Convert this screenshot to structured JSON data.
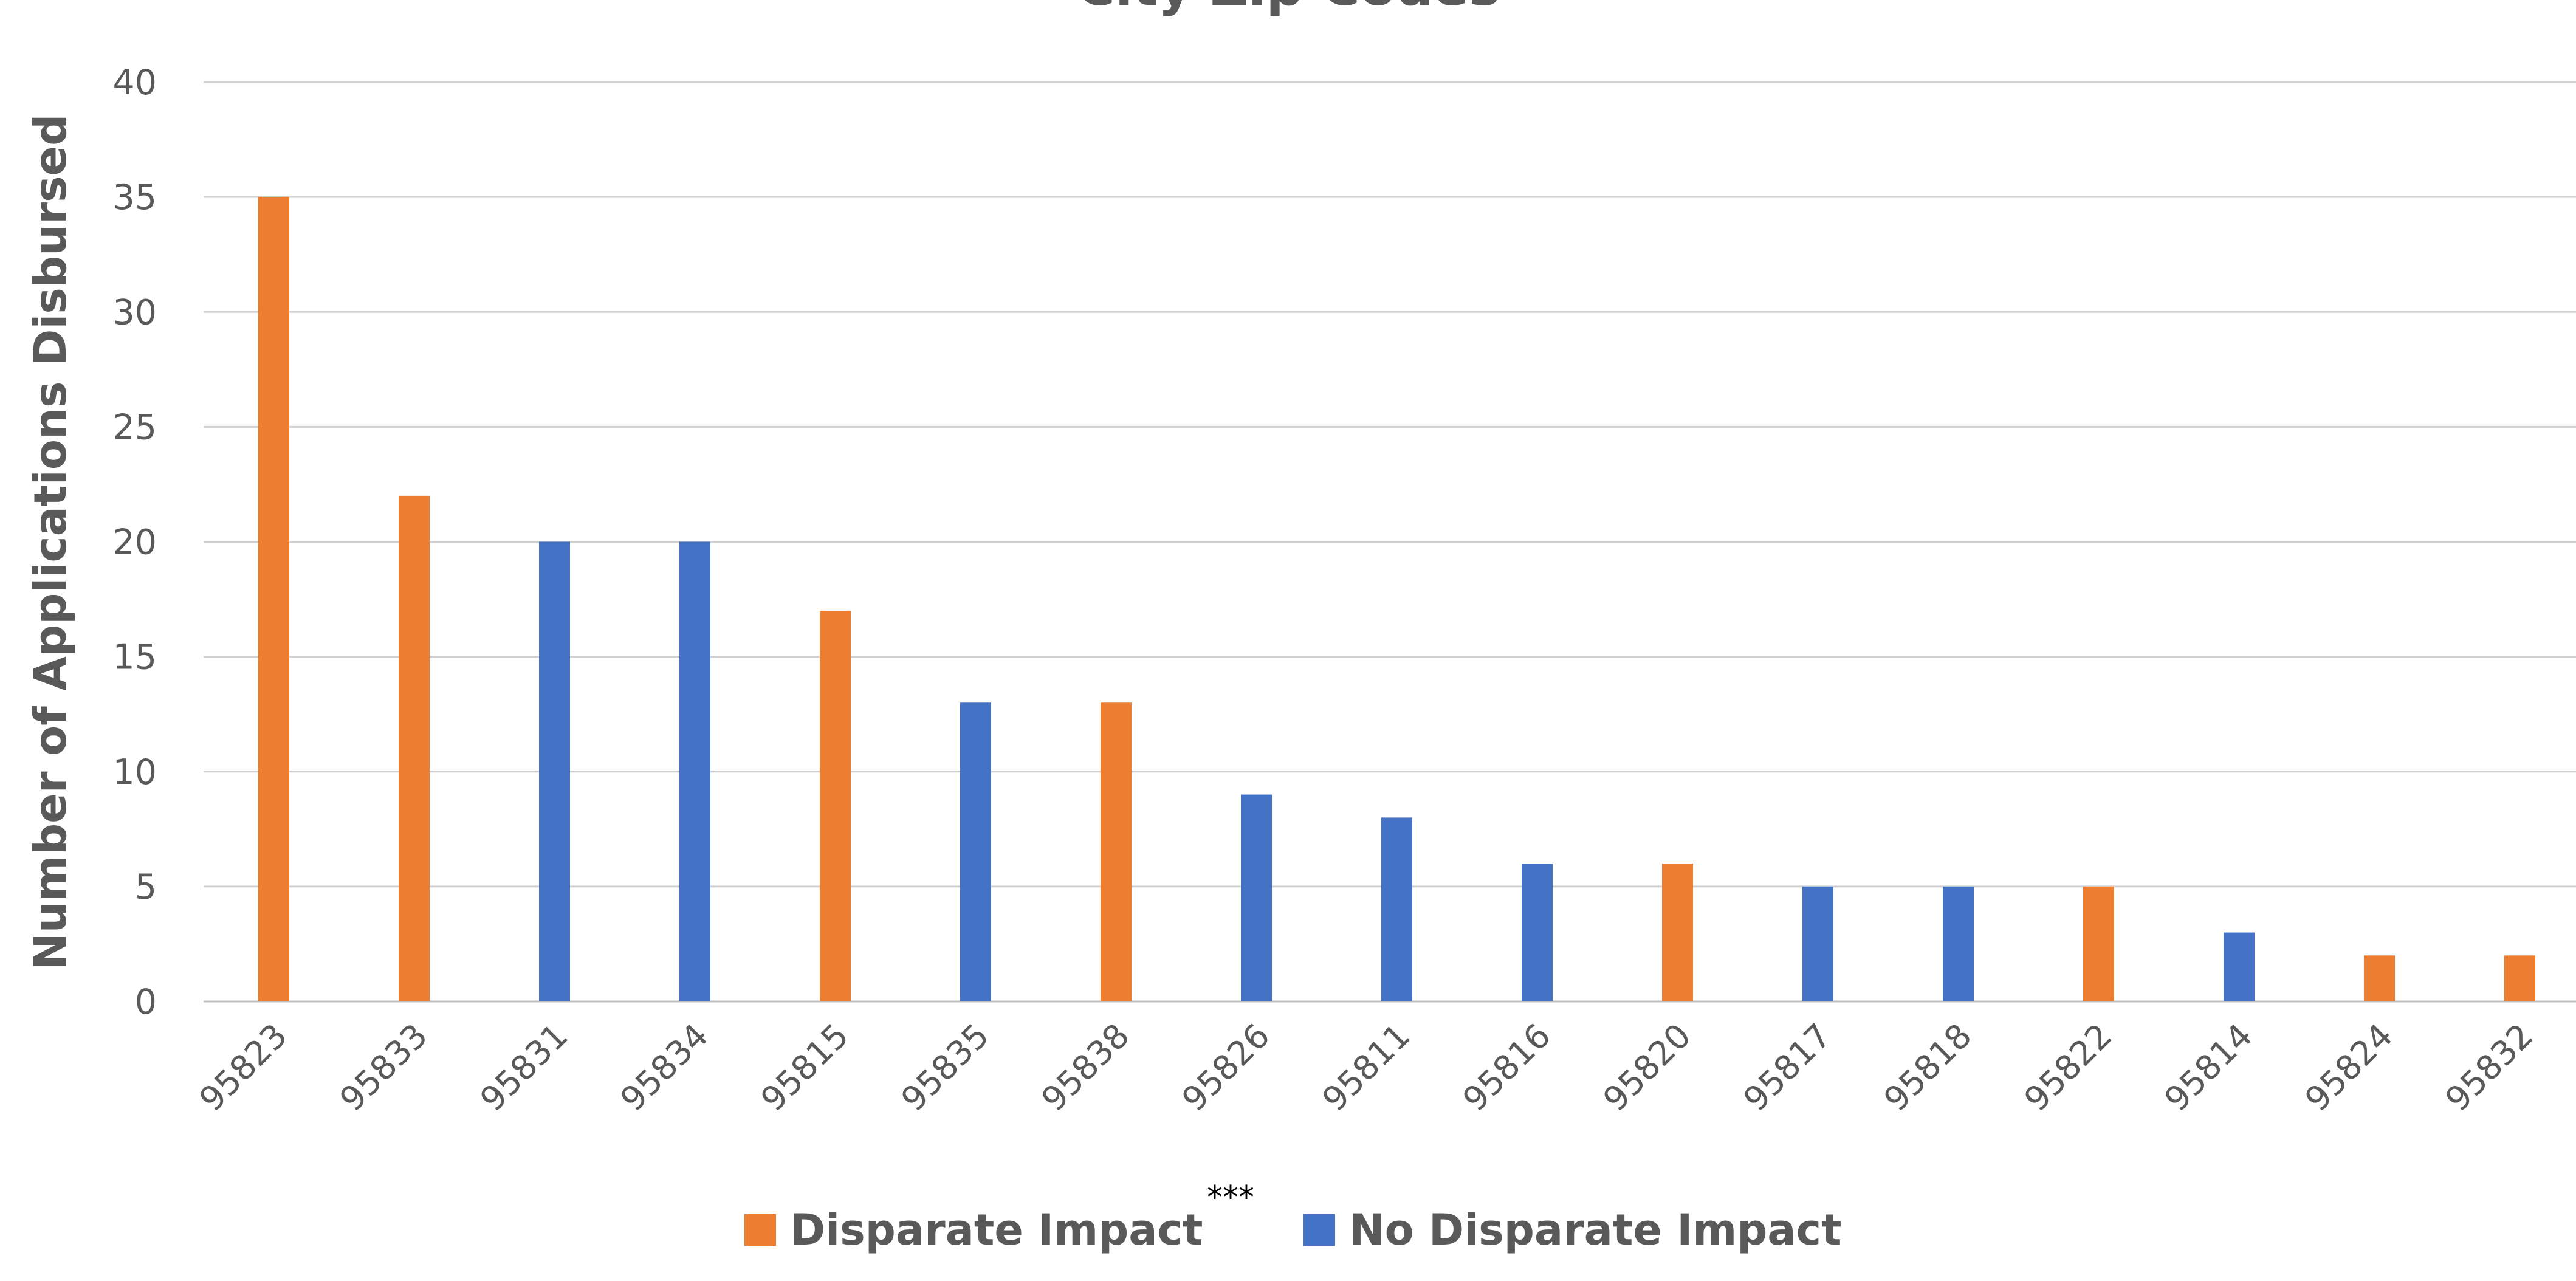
{
  "chart_data": {
    "type": "bar",
    "title": "City Zip Codes",
    "ylabel": "Number of Applications Disbursed",
    "xlabel": "",
    "ylim": [
      0,
      40
    ],
    "yticks": [
      0,
      5,
      10,
      15,
      20,
      25,
      30,
      35,
      40
    ],
    "grid": true,
    "legend_placement": "bottom",
    "categories": [
      "95823",
      "95833",
      "95831",
      "95834",
      "95815",
      "95835",
      "95838",
      "95826",
      "95811",
      "95816",
      "95820",
      "95817",
      "95818",
      "95822",
      "95814",
      "95824",
      "95832"
    ],
    "values": [
      35,
      22,
      20,
      20,
      17,
      13,
      13,
      9,
      8,
      6,
      6,
      5,
      5,
      5,
      3,
      2,
      2
    ],
    "groups": [
      "Disparate Impact",
      "Disparate Impact",
      "No Disparate Impact",
      "No Disparate Impact",
      "Disparate Impact",
      "No Disparate Impact",
      "Disparate Impact",
      "No Disparate Impact",
      "No Disparate Impact",
      "No Disparate Impact",
      "Disparate Impact",
      "No Disparate Impact",
      "No Disparate Impact",
      "Disparate Impact",
      "No Disparate Impact",
      "Disparate Impact",
      "Disparate Impact"
    ],
    "legend": [
      {
        "name": "Disparate Impact",
        "color": "#ED7D31"
      },
      {
        "name": "No Disparate Impact",
        "color": "#4472C4"
      }
    ],
    "annotation": "***"
  }
}
